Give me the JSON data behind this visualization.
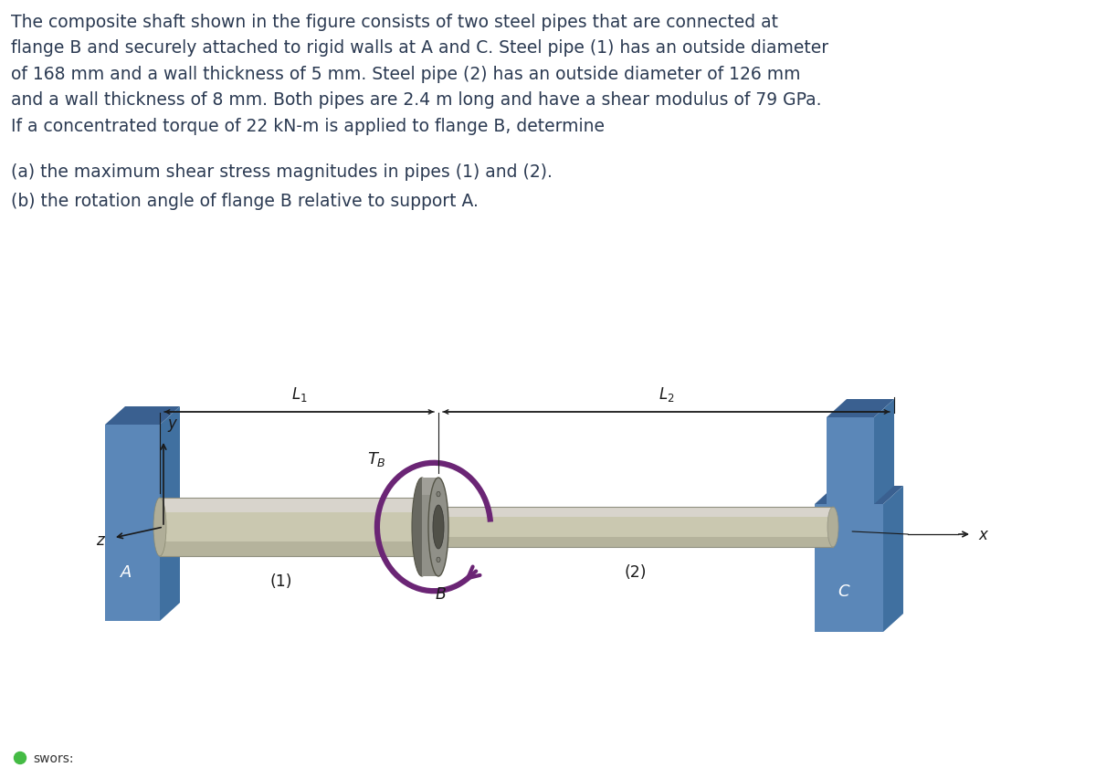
{
  "background_color": "#ffffff",
  "text_color": "#2b3a52",
  "paragraph_lines": [
    "The composite shaft shown in the figure consists of two steel pipes that are connected at",
    "flange B and securely attached to rigid walls at A and C. Steel pipe (1) has an outside diameter",
    "of 168 mm and a wall thickness of 5 mm. Steel pipe (2) has an outside diameter of 126 mm",
    "and a wall thickness of 8 mm. Both pipes are 2.4 m long and have a shear modulus of 79 GPa.",
    "If a concentrated torque of 22 kN-m is applied to flange B, determine"
  ],
  "sub_text_a": "(a) the maximum shear stress magnitudes in pipes (1) and (2).",
  "sub_text_b": "(b) the rotation angle of flange B relative to support A.",
  "wall_color_front": "#5b87b8",
  "wall_color_side": "#4070a0",
  "wall_color_top": "#3a6090",
  "pipe_color_main": "#cac8b0",
  "pipe_color_top": "#dedad8",
  "pipe_color_bottom": "#a8a690",
  "pipe_color_end": "#b0ae98",
  "flange_color_main": "#909088",
  "flange_color_dark": "#686860",
  "flange_color_light": "#b0aea8",
  "arrow_color": "#6b2575",
  "bolt_color": "#808078",
  "bolt_dark": "#484840",
  "dim_color": "#1a1a1a",
  "label_color": "#1a1a1a",
  "axis_color": "#1a1a1a",
  "footer_text": "swors:",
  "green_dot_color": "#44bb44",
  "pipe1_label": "(1)",
  "pipe2_label": "(2)",
  "flange_label": "B",
  "wall_A_label": "A",
  "wall_C_label": "C",
  "torque_label": "$T_B$",
  "L1_label": "$L_1$",
  "L2_label": "$L_2$",
  "x_label": "$x$",
  "y_label": "$y$",
  "z_label": "$z$"
}
